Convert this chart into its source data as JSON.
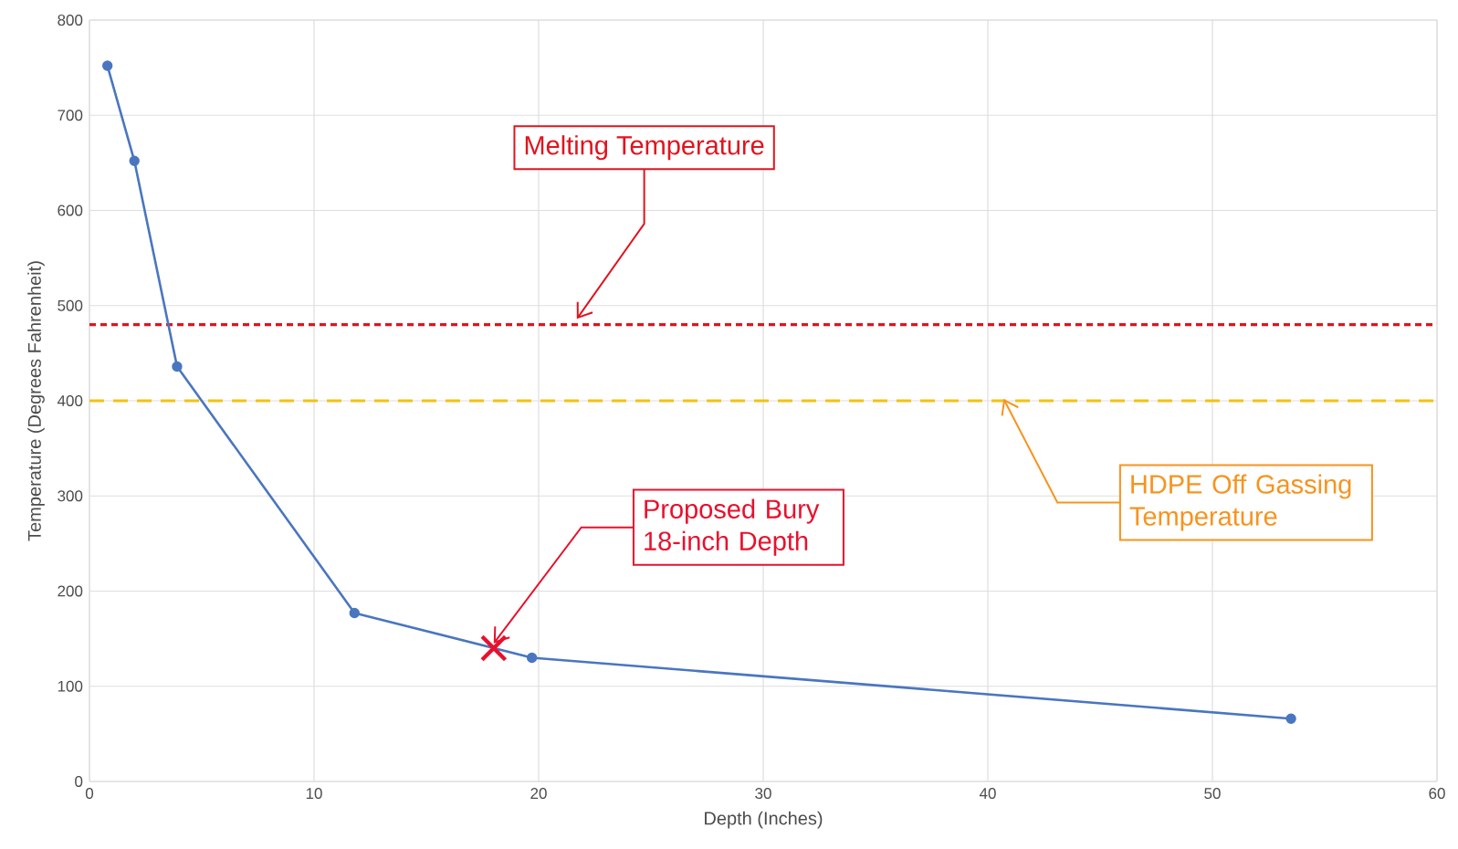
{
  "chart_data": {
    "type": "line",
    "xlabel": "Depth (Inches)",
    "ylabel": "Temperature (Degrees Fahrenheit)",
    "xlim": [
      0,
      60
    ],
    "xticks": [
      0,
      10,
      20,
      30,
      40,
      50,
      60
    ],
    "ylim": [
      0,
      800
    ],
    "yticks": [
      0,
      100,
      200,
      300,
      400,
      500,
      600,
      700,
      800
    ],
    "grid": true,
    "marker": "circle",
    "series": [
      {
        "color": "#4a76c0",
        "x": [
          0.8,
          2.0,
          3.9,
          11.8,
          19.7,
          53.5
        ],
        "values": [
          752,
          652,
          436,
          177,
          130,
          66
        ]
      },
      {
        "type": "scatter",
        "marker": "cross",
        "color": "#e8112d",
        "x": [
          18
        ],
        "values": [
          140
        ]
      }
    ],
    "ref_lines": [
      {
        "axis": "y",
        "value": 480,
        "label": "Melting Temperature",
        "color": "#e0141e",
        "line_style": "dotted"
      },
      {
        "axis": "y",
        "value": 400,
        "label": "HDPE Off Gassing Temperature",
        "color": "#f2c20f",
        "line_style": "dashed"
      }
    ],
    "annotations": [
      {
        "text": "Proposed Bury 18-inch Depth",
        "x": 18,
        "y": 140
      }
    ]
  }
}
